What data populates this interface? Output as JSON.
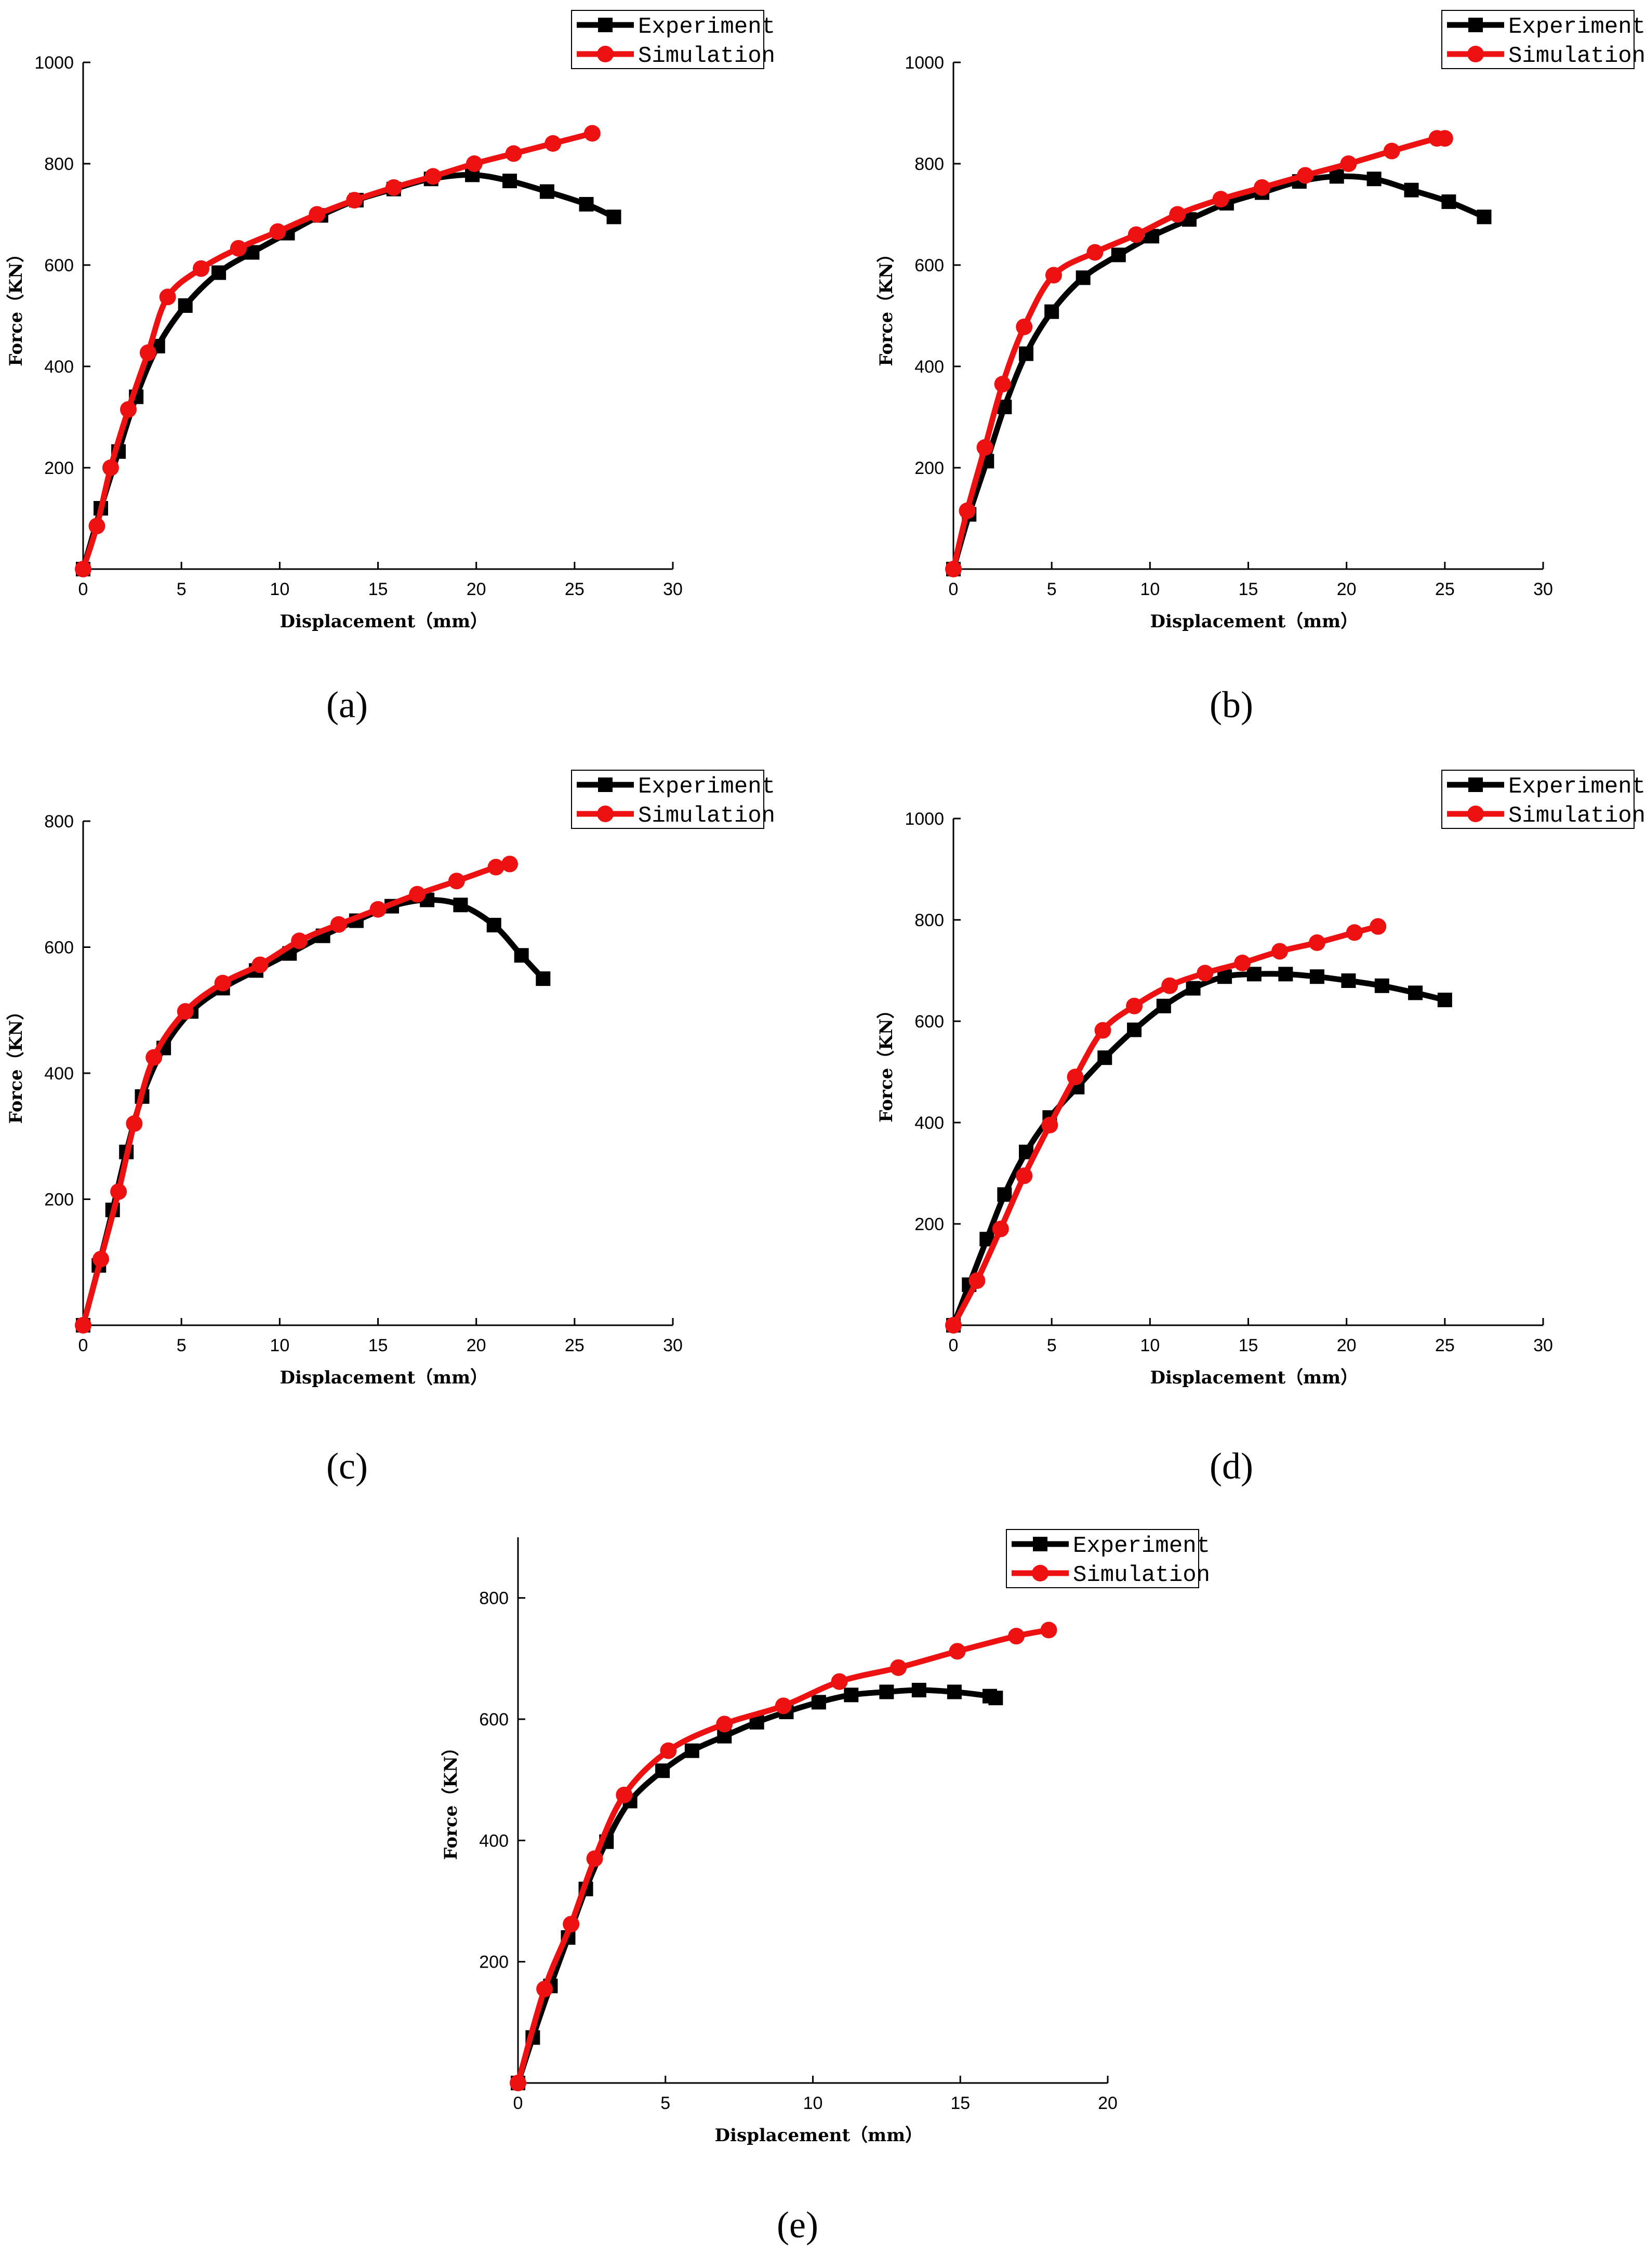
{
  "colors": {
    "experiment": "#000000",
    "simulation": "#ee1111"
  },
  "icons": {
    "experiment_marker": "square",
    "simulation_marker": "circle"
  },
  "chart_data": [
    {
      "panel": "(a)",
      "type": "line",
      "xlabel": "Displacement（mm）",
      "ylabel": "Force（KN）",
      "xlim": [
        0,
        30
      ],
      "ylim": [
        0,
        1000
      ],
      "xticks": [
        0,
        5,
        10,
        15,
        20,
        25,
        30
      ],
      "yticks": [
        200,
        400,
        600,
        800,
        1000
      ],
      "legend": "top-right",
      "grid": false,
      "series": [
        {
          "name": "Experiment",
          "marker": "square",
          "color": "#000000",
          "x": [
            0,
            0.9,
            1.8,
            2.7,
            3.8,
            5.2,
            6.9,
            8.6,
            10.4,
            12.1,
            13.9,
            15.8,
            17.7,
            19.8,
            21.7,
            23.6,
            25.6,
            27.0
          ],
          "y": [
            0,
            120,
            232,
            340,
            440,
            520,
            585,
            625,
            663,
            698,
            728,
            750,
            770,
            778,
            766,
            745,
            720,
            695
          ]
        },
        {
          "name": "Simulation",
          "marker": "circle",
          "color": "#ee1111",
          "x": [
            0,
            0.7,
            1.4,
            2.3,
            3.3,
            4.3,
            6.0,
            7.9,
            9.9,
            11.9,
            13.8,
            15.8,
            17.8,
            19.9,
            21.9,
            23.9,
            25.9
          ],
          "y": [
            0,
            85,
            200,
            315,
            427,
            537,
            593,
            633,
            666,
            700,
            728,
            753,
            775,
            800,
            820,
            840,
            860
          ]
        }
      ]
    },
    {
      "panel": "(b)",
      "type": "line",
      "xlabel": "Displacement（mm）",
      "ylabel": "Force（KN）",
      "xlim": [
        0,
        30
      ],
      "ylim": [
        0,
        1000
      ],
      "xticks": [
        0,
        5,
        10,
        15,
        20,
        25,
        30
      ],
      "yticks": [
        200,
        400,
        600,
        800,
        1000
      ],
      "legend": "top-right",
      "grid": false,
      "series": [
        {
          "name": "Experiment",
          "marker": "square",
          "color": "#000000",
          "x": [
            0,
            0.8,
            1.7,
            2.6,
            3.7,
            5.0,
            6.6,
            8.4,
            10.1,
            12.0,
            13.9,
            15.7,
            17.6,
            19.5,
            21.4,
            23.3,
            25.2,
            27.0
          ],
          "y": [
            0,
            108,
            213,
            320,
            425,
            508,
            575,
            620,
            657,
            690,
            722,
            743,
            765,
            775,
            770,
            748,
            725,
            695
          ]
        },
        {
          "name": "Simulation",
          "marker": "circle",
          "color": "#ee1111",
          "x": [
            0,
            0.7,
            1.6,
            2.5,
            3.6,
            5.1,
            7.2,
            9.3,
            11.4,
            13.6,
            15.7,
            17.9,
            20.1,
            22.3,
            24.6,
            25.0
          ],
          "y": [
            0,
            115,
            240,
            365,
            478,
            580,
            625,
            660,
            700,
            730,
            753,
            777,
            800,
            825,
            850,
            850
          ]
        }
      ]
    },
    {
      "panel": "(c)",
      "type": "line",
      "xlabel": "Displacement（mm）",
      "ylabel": "Force（KN）",
      "xlim": [
        0,
        30
      ],
      "ylim": [
        0,
        800
      ],
      "xticks": [
        0,
        5,
        10,
        15,
        20,
        25,
        30
      ],
      "yticks": [
        200,
        400,
        600,
        800
      ],
      "legend": "top-right",
      "grid": false,
      "series": [
        {
          "name": "Experiment",
          "marker": "square",
          "color": "#000000",
          "x": [
            0,
            0.8,
            1.5,
            2.2,
            3.0,
            4.1,
            5.5,
            7.1,
            8.8,
            10.5,
            12.2,
            13.9,
            15.7,
            17.5,
            19.2,
            20.9,
            22.3,
            23.4
          ],
          "y": [
            0,
            95,
            183,
            275,
            363,
            440,
            498,
            535,
            563,
            590,
            618,
            642,
            665,
            675,
            667,
            635,
            587,
            550
          ]
        },
        {
          "name": "Simulation",
          "marker": "circle",
          "color": "#ee1111",
          "x": [
            0,
            0.9,
            1.8,
            2.6,
            3.6,
            5.2,
            7.1,
            9.0,
            11.0,
            13.0,
            15.0,
            17.0,
            19.0,
            21.0,
            21.7
          ],
          "y": [
            0,
            105,
            212,
            320,
            425,
            498,
            543,
            572,
            610,
            636,
            660,
            684,
            705,
            727,
            732
          ]
        }
      ]
    },
    {
      "panel": "(d)",
      "type": "line",
      "xlabel": "Displacement（mm）",
      "ylabel": "Force（KN）",
      "xlim": [
        0,
        30
      ],
      "ylim": [
        0,
        1000
      ],
      "xticks": [
        0,
        5,
        10,
        15,
        20,
        25,
        30
      ],
      "yticks": [
        200,
        400,
        600,
        800,
        1000
      ],
      "legend": "top-right",
      "grid": false,
      "series": [
        {
          "name": "Experiment",
          "marker": "square",
          "color": "#000000",
          "x": [
            0,
            0.8,
            1.7,
            2.6,
            3.7,
            4.9,
            6.3,
            7.7,
            9.2,
            10.7,
            12.2,
            13.8,
            15.3,
            16.9,
            18.5,
            20.1,
            21.8,
            23.5,
            25.0
          ],
          "y": [
            0,
            80,
            170,
            258,
            342,
            410,
            470,
            528,
            583,
            630,
            665,
            688,
            693,
            693,
            688,
            680,
            670,
            656,
            642
          ]
        },
        {
          "name": "Simulation",
          "marker": "circle",
          "color": "#ee1111",
          "x": [
            0,
            1.2,
            2.4,
            3.6,
            4.9,
            6.2,
            7.6,
            9.2,
            11.0,
            12.8,
            14.7,
            16.6,
            18.5,
            20.4,
            21.6
          ],
          "y": [
            0,
            88,
            190,
            295,
            395,
            490,
            582,
            630,
            670,
            695,
            715,
            738,
            755,
            775,
            787
          ]
        }
      ]
    },
    {
      "panel": "(e)",
      "type": "line",
      "xlabel": "Displacement（mm）",
      "ylabel": "Force（KN）",
      "xlim": [
        0,
        20
      ],
      "ylim": [
        0,
        900
      ],
      "xticks": [
        0,
        5,
        10,
        15,
        20
      ],
      "yticks": [
        200,
        400,
        600,
        800
      ],
      "legend": "top-right",
      "grid": false,
      "series": [
        {
          "name": "Experiment",
          "marker": "square",
          "color": "#000000",
          "x": [
            0,
            0.5,
            1.1,
            1.7,
            2.3,
            3.0,
            3.8,
            4.9,
            5.9,
            7.0,
            8.1,
            9.1,
            10.2,
            11.3,
            12.5,
            13.6,
            14.8,
            16.0,
            16.2
          ],
          "y": [
            0,
            75,
            160,
            240,
            320,
            398,
            465,
            515,
            548,
            572,
            595,
            612,
            628,
            640,
            645,
            648,
            645,
            638,
            635
          ]
        },
        {
          "name": "Simulation",
          "marker": "circle",
          "color": "#ee1111",
          "x": [
            0,
            0.9,
            1.8,
            2.6,
            3.6,
            5.1,
            7.0,
            9.0,
            10.9,
            12.9,
            14.9,
            16.9,
            18.0
          ],
          "y": [
            0,
            155,
            262,
            370,
            475,
            548,
            592,
            622,
            662,
            685,
            712,
            737,
            747
          ]
        }
      ]
    }
  ]
}
